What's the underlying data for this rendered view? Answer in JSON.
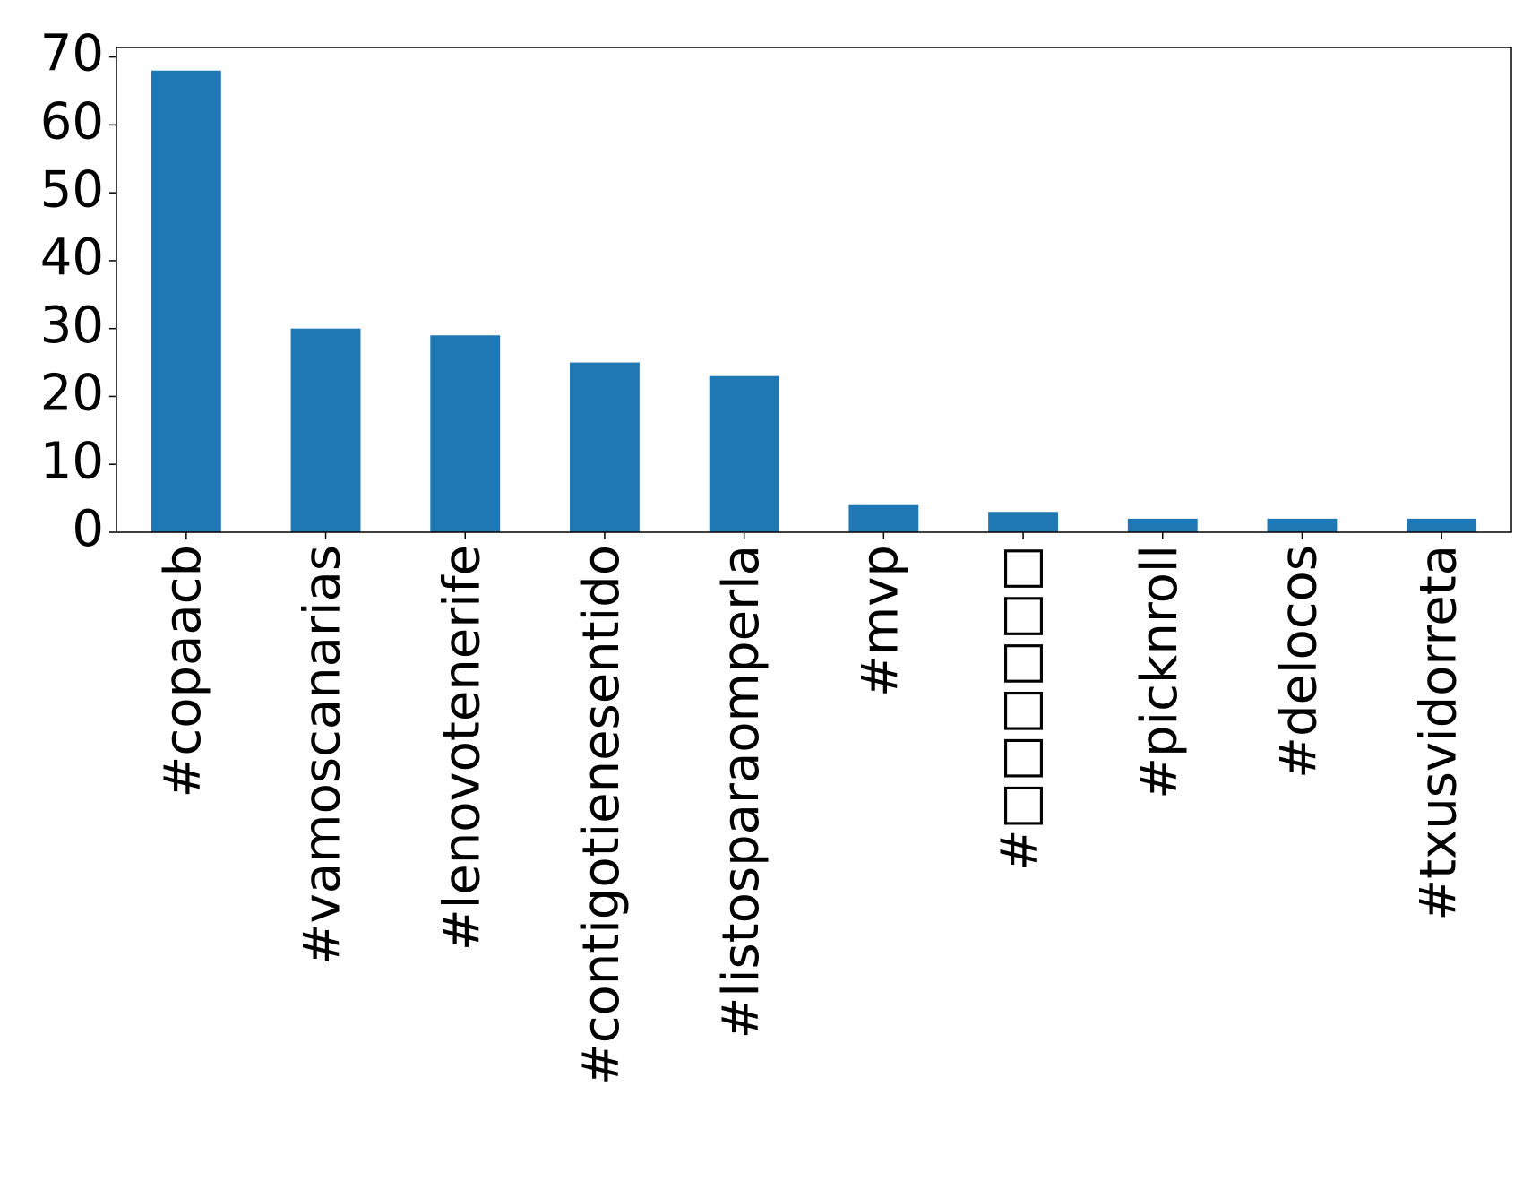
{
  "chart_data": {
    "type": "bar",
    "categories": [
      "#copaacb",
      "#vamoscanarias",
      "#lenovotenerife",
      "#contigotienesentido",
      "#listosparaomperla",
      "#mvp",
      "#□□□□□□",
      "#picknroll",
      "#delocos",
      "#txusvidorreta"
    ],
    "values": [
      68,
      30,
      29,
      25,
      23,
      4,
      3,
      2,
      2,
      2
    ],
    "color": "#1f77b4",
    "ylim": [
      0,
      71.4
    ],
    "yticks": [
      0,
      10,
      20,
      30,
      40,
      50,
      60,
      70
    ],
    "grid": false
  }
}
